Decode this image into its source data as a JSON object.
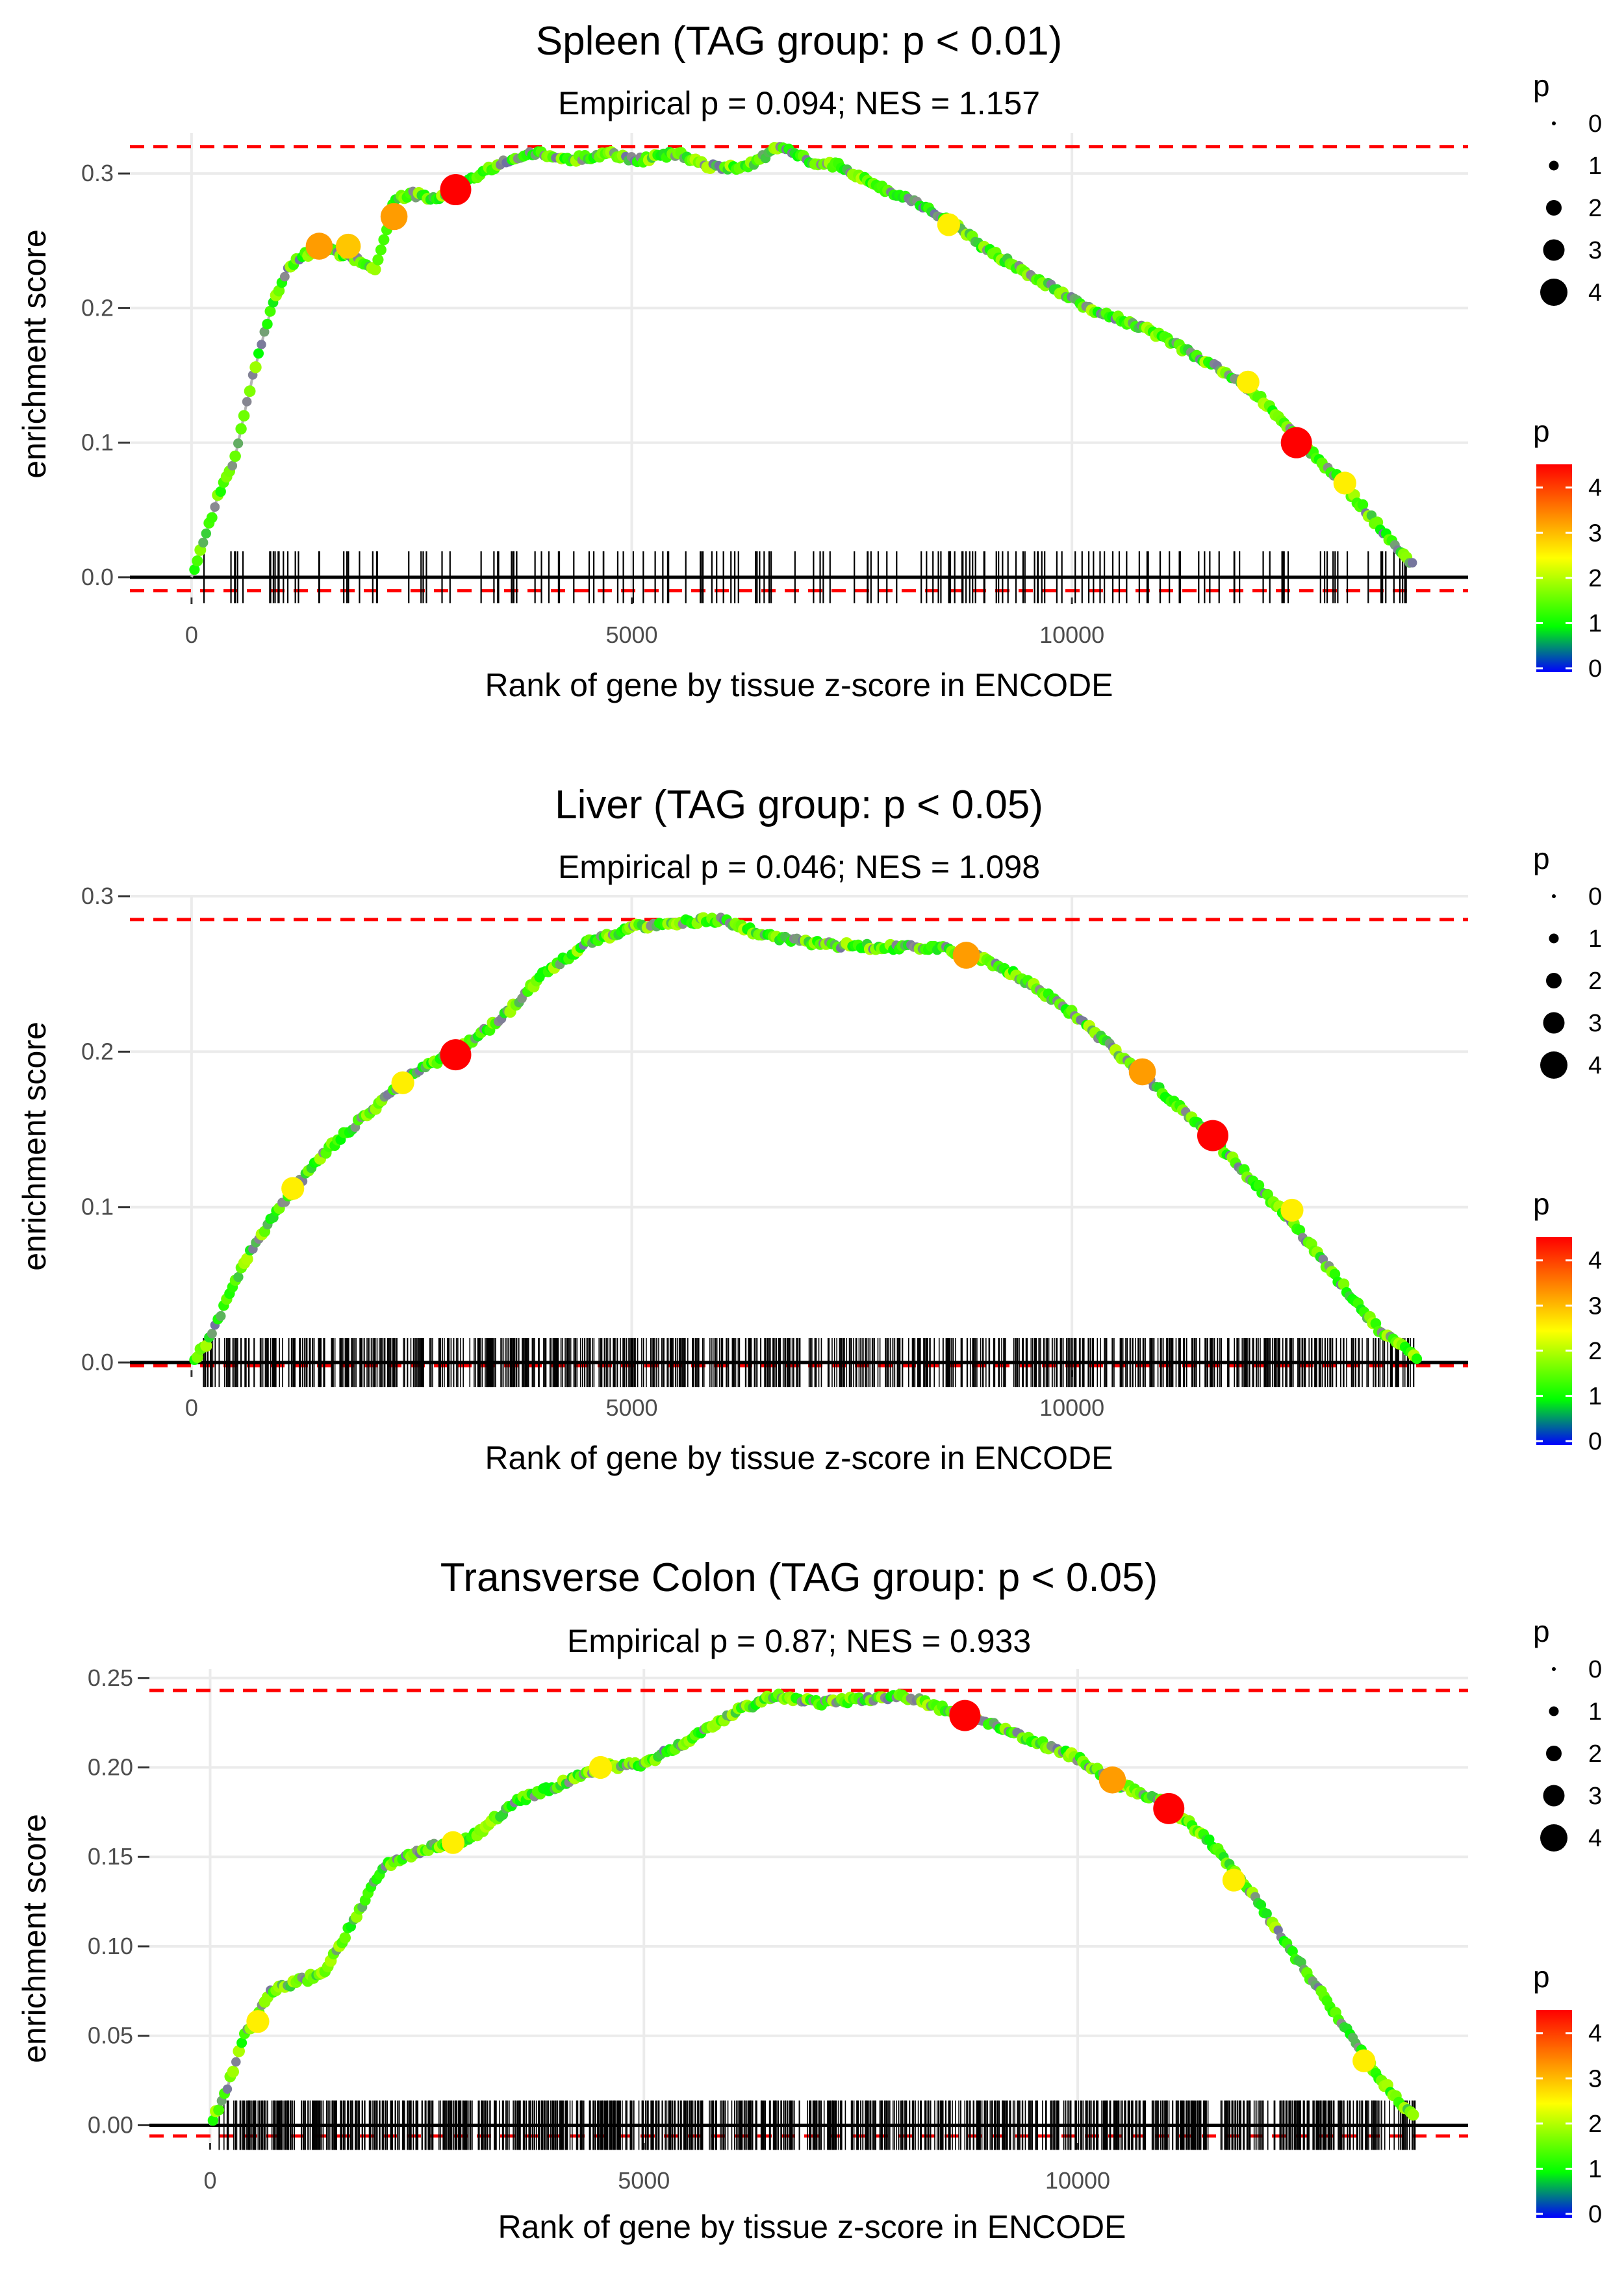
{
  "colors": {
    "threshold": "#ff0000",
    "baseline": "#000000",
    "running_line": "#b3b3b3",
    "rug": "#000000",
    "grid": "#ebebeb",
    "color_scale": [
      "#0000ff",
      "#00ff00",
      "#ffff00",
      "#ff0000"
    ]
  },
  "legend": {
    "size_title": "p",
    "size_labels": [
      "0",
      "1",
      "2",
      "3",
      "4"
    ],
    "color_title": "p",
    "color_labels": [
      "4",
      "3",
      "2",
      "1",
      "0"
    ]
  },
  "chart_data": [
    {
      "type": "scatter",
      "title": "Spleen (TAG group: p < 0.01)",
      "subtitle": "Empirical p = 0.094; NES = 1.157",
      "xlabel": "Rank of gene by tissue z-score in ENCODE",
      "ylabel": "enrichment score",
      "xlim": [
        -700,
        14500
      ],
      "ylim": [
        -0.015,
        0.33
      ],
      "x_ticks": [
        0,
        5000,
        10000
      ],
      "x_tick_labels": [
        "0",
        "5000",
        "10000"
      ],
      "y_ticks": [
        0.0,
        0.1,
        0.2,
        0.3
      ],
      "y_tick_labels": [
        "0.0",
        "0.1",
        "0.2",
        "0.3"
      ],
      "max_es": 0.32,
      "min_es": -0.01,
      "n_genes": 13900,
      "n_hits": 170,
      "curve": [
        [
          0,
          0
        ],
        [
          150,
          0.03
        ],
        [
          300,
          0.06
        ],
        [
          500,
          0.09
        ],
        [
          700,
          0.15
        ],
        [
          900,
          0.2
        ],
        [
          1100,
          0.23
        ],
        [
          1300,
          0.24
        ],
        [
          1500,
          0.245
        ],
        [
          1700,
          0.24
        ],
        [
          1900,
          0.235
        ],
        [
          2100,
          0.23
        ],
        [
          2300,
          0.28
        ],
        [
          2500,
          0.285
        ],
        [
          2800,
          0.28
        ],
        [
          3000,
          0.29
        ],
        [
          3300,
          0.3
        ],
        [
          3600,
          0.31
        ],
        [
          3900,
          0.315
        ],
        [
          4300,
          0.31
        ],
        [
          4700,
          0.315
        ],
        [
          5100,
          0.31
        ],
        [
          5500,
          0.315
        ],
        [
          5900,
          0.305
        ],
        [
          6300,
          0.305
        ],
        [
          6700,
          0.32
        ],
        [
          7000,
          0.31
        ],
        [
          7400,
          0.305
        ],
        [
          7800,
          0.29
        ],
        [
          8200,
          0.28
        ],
        [
          8600,
          0.265
        ],
        [
          9000,
          0.245
        ],
        [
          9400,
          0.23
        ],
        [
          9800,
          0.215
        ],
        [
          10200,
          0.2
        ],
        [
          10600,
          0.19
        ],
        [
          11000,
          0.18
        ],
        [
          11400,
          0.165
        ],
        [
          11800,
          0.15
        ],
        [
          12200,
          0.13
        ],
        [
          12600,
          0.1
        ],
        [
          13000,
          0.075
        ],
        [
          13400,
          0.045
        ],
        [
          13700,
          0.02
        ],
        [
          13900,
          0.008
        ]
      ],
      "big_points": [
        [
          1450,
          0.246,
          4
        ],
        [
          1780,
          0.246,
          3.5
        ],
        [
          2300,
          0.268,
          4
        ],
        [
          3000,
          0.288,
          5
        ],
        [
          12550,
          0.1,
          5
        ],
        [
          13100,
          0.07,
          3
        ],
        [
          12000,
          0.145,
          3
        ],
        [
          8600,
          0.262,
          3
        ]
      ]
    },
    {
      "type": "scatter",
      "title": "Liver (TAG group: p < 0.05)",
      "subtitle": "Empirical p = 0.046; NES = 1.098",
      "xlabel": "Rank of gene by tissue z-score in ENCODE",
      "ylabel": "enrichment score",
      "xlim": [
        -700,
        14500
      ],
      "ylim": [
        -0.005,
        0.3
      ],
      "x_ticks": [
        0,
        5000,
        10000
      ],
      "x_tick_labels": [
        "0",
        "5000",
        "10000"
      ],
      "y_ticks": [
        0.0,
        0.1,
        0.2,
        0.3
      ],
      "y_tick_labels": [
        "0.0",
        "0.1",
        "0.2",
        "0.3"
      ],
      "max_es": 0.285,
      "min_es": -0.002,
      "n_genes": 14000,
      "n_hits": 900,
      "curve": [
        [
          0,
          0
        ],
        [
          200,
          0.015
        ],
        [
          600,
          0.065
        ],
        [
          1000,
          0.1
        ],
        [
          1500,
          0.135
        ],
        [
          2000,
          0.16
        ],
        [
          2500,
          0.185
        ],
        [
          3000,
          0.2
        ],
        [
          3500,
          0.22
        ],
        [
          4000,
          0.25
        ],
        [
          4500,
          0.27
        ],
        [
          5000,
          0.28
        ],
        [
          5500,
          0.283
        ],
        [
          6000,
          0.285
        ],
        [
          6500,
          0.275
        ],
        [
          7000,
          0.27
        ],
        [
          7500,
          0.268
        ],
        [
          8000,
          0.267
        ],
        [
          8500,
          0.267
        ],
        [
          9000,
          0.26
        ],
        [
          9500,
          0.245
        ],
        [
          10000,
          0.225
        ],
        [
          10500,
          0.2
        ],
        [
          11000,
          0.175
        ],
        [
          11500,
          0.15
        ],
        [
          12000,
          0.12
        ],
        [
          12500,
          0.09
        ],
        [
          13000,
          0.055
        ],
        [
          13500,
          0.02
        ],
        [
          13950,
          0.002
        ]
      ],
      "big_points": [
        [
          3000,
          0.198,
          5
        ],
        [
          1150,
          0.112,
          3
        ],
        [
          2400,
          0.18,
          3
        ],
        [
          8800,
          0.262,
          4
        ],
        [
          10800,
          0.187,
          4
        ],
        [
          11600,
          0.146,
          5
        ],
        [
          12500,
          0.098,
          3
        ]
      ]
    },
    {
      "type": "scatter",
      "title": "Transverse Colon (TAG group: p < 0.05)",
      "subtitle": "Empirical p = 0.87; NES = 0.933",
      "xlabel": "Rank of gene by tissue z-score in ENCODE",
      "ylabel": "enrichment score",
      "xlim": [
        -700,
        14500
      ],
      "ylim": [
        -0.01,
        0.255
      ],
      "x_ticks": [
        0,
        5000,
        10000
      ],
      "x_tick_labels": [
        "0",
        "5000",
        "10000"
      ],
      "y_ticks": [
        0.0,
        0.05,
        0.1,
        0.15,
        0.2,
        0.25
      ],
      "y_tick_labels": [
        "0.00",
        "0.05",
        "0.10",
        "0.15",
        "0.20",
        "0.25"
      ],
      "max_es": 0.243,
      "min_es": -0.006,
      "n_genes": 14000,
      "n_hits": 1100,
      "curve": [
        [
          0,
          0
        ],
        [
          150,
          0.015
        ],
        [
          400,
          0.05
        ],
        [
          700,
          0.075
        ],
        [
          1000,
          0.08
        ],
        [
          1300,
          0.085
        ],
        [
          1600,
          0.11
        ],
        [
          2000,
          0.145
        ],
        [
          2500,
          0.155
        ],
        [
          3000,
          0.16
        ],
        [
          3500,
          0.18
        ],
        [
          4000,
          0.19
        ],
        [
          4500,
          0.2
        ],
        [
          5000,
          0.202
        ],
        [
          5500,
          0.215
        ],
        [
          6000,
          0.23
        ],
        [
          6500,
          0.24
        ],
        [
          7000,
          0.236
        ],
        [
          7500,
          0.238
        ],
        [
          8000,
          0.24
        ],
        [
          8500,
          0.232
        ],
        [
          9000,
          0.225
        ],
        [
          9500,
          0.215
        ],
        [
          10000,
          0.205
        ],
        [
          10500,
          0.19
        ],
        [
          11000,
          0.18
        ],
        [
          11500,
          0.16
        ],
        [
          12000,
          0.13
        ],
        [
          12500,
          0.095
        ],
        [
          13000,
          0.06
        ],
        [
          13500,
          0.025
        ],
        [
          13900,
          0.003
        ]
      ],
      "big_points": [
        [
          8700,
          0.229,
          5
        ],
        [
          10400,
          0.193,
          4
        ],
        [
          11050,
          0.177,
          5
        ],
        [
          11800,
          0.137,
          3
        ],
        [
          2800,
          0.158,
          3
        ],
        [
          4500,
          0.2,
          3
        ],
        [
          550,
          0.058,
          3
        ],
        [
          13300,
          0.036,
          3
        ]
      ]
    }
  ]
}
